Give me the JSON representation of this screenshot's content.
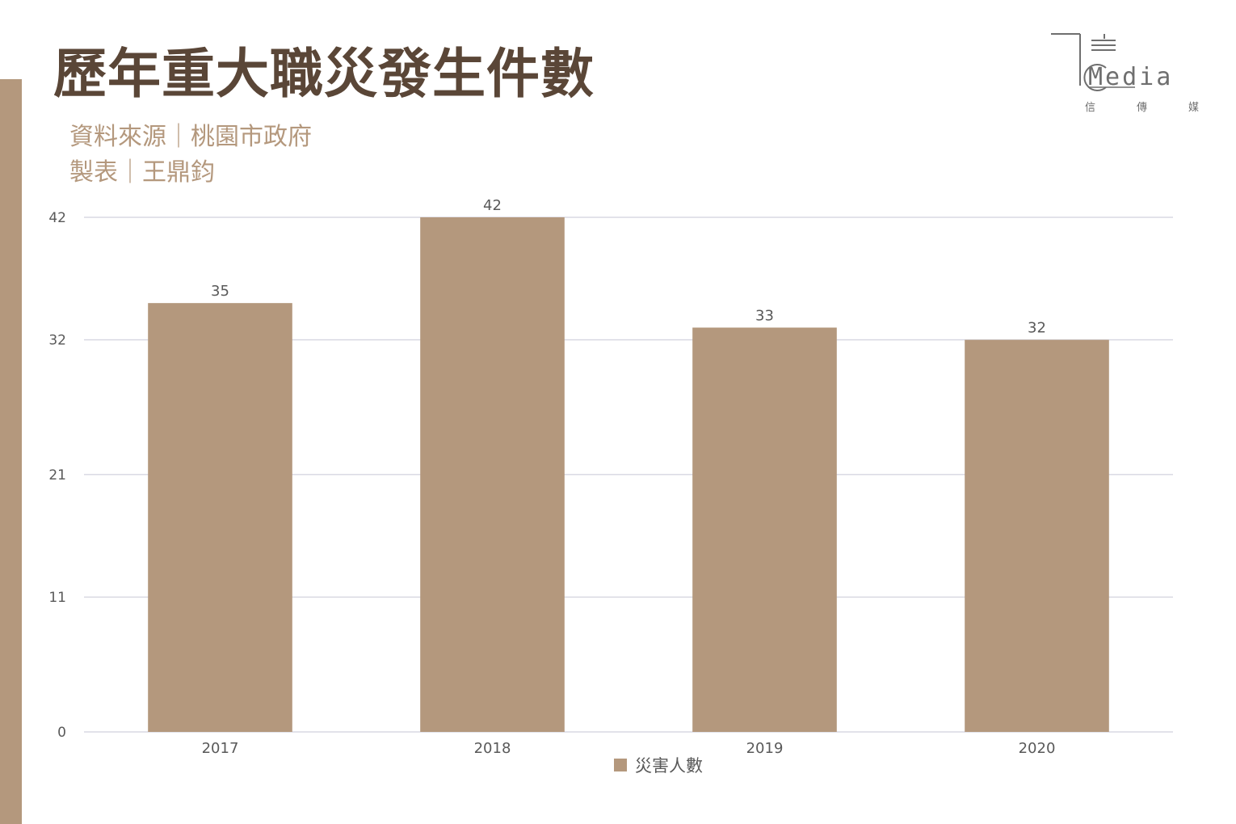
{
  "header": {
    "title": "歷年重大職災發生件數",
    "source": "資料來源｜桃園市政府",
    "author": "製表｜王鼎鈞"
  },
  "logo": {
    "word": "Media",
    "sub": [
      "信",
      "傳",
      "媒"
    ]
  },
  "colors": {
    "accent": "#b4987d",
    "title": "#5a4637",
    "grid": "#d9d9e3",
    "text": "#595959"
  },
  "chart_data": {
    "type": "bar",
    "categories": [
      "2017",
      "2018",
      "2019",
      "2020"
    ],
    "series": [
      {
        "name": "災害人數",
        "values": [
          35,
          42,
          33,
          32
        ]
      }
    ],
    "yticks": [
      0,
      11,
      21,
      32,
      42
    ],
    "ylim": [
      0,
      42
    ],
    "grid": true,
    "legend_position": "bottom",
    "xlabel": "",
    "ylabel": ""
  }
}
